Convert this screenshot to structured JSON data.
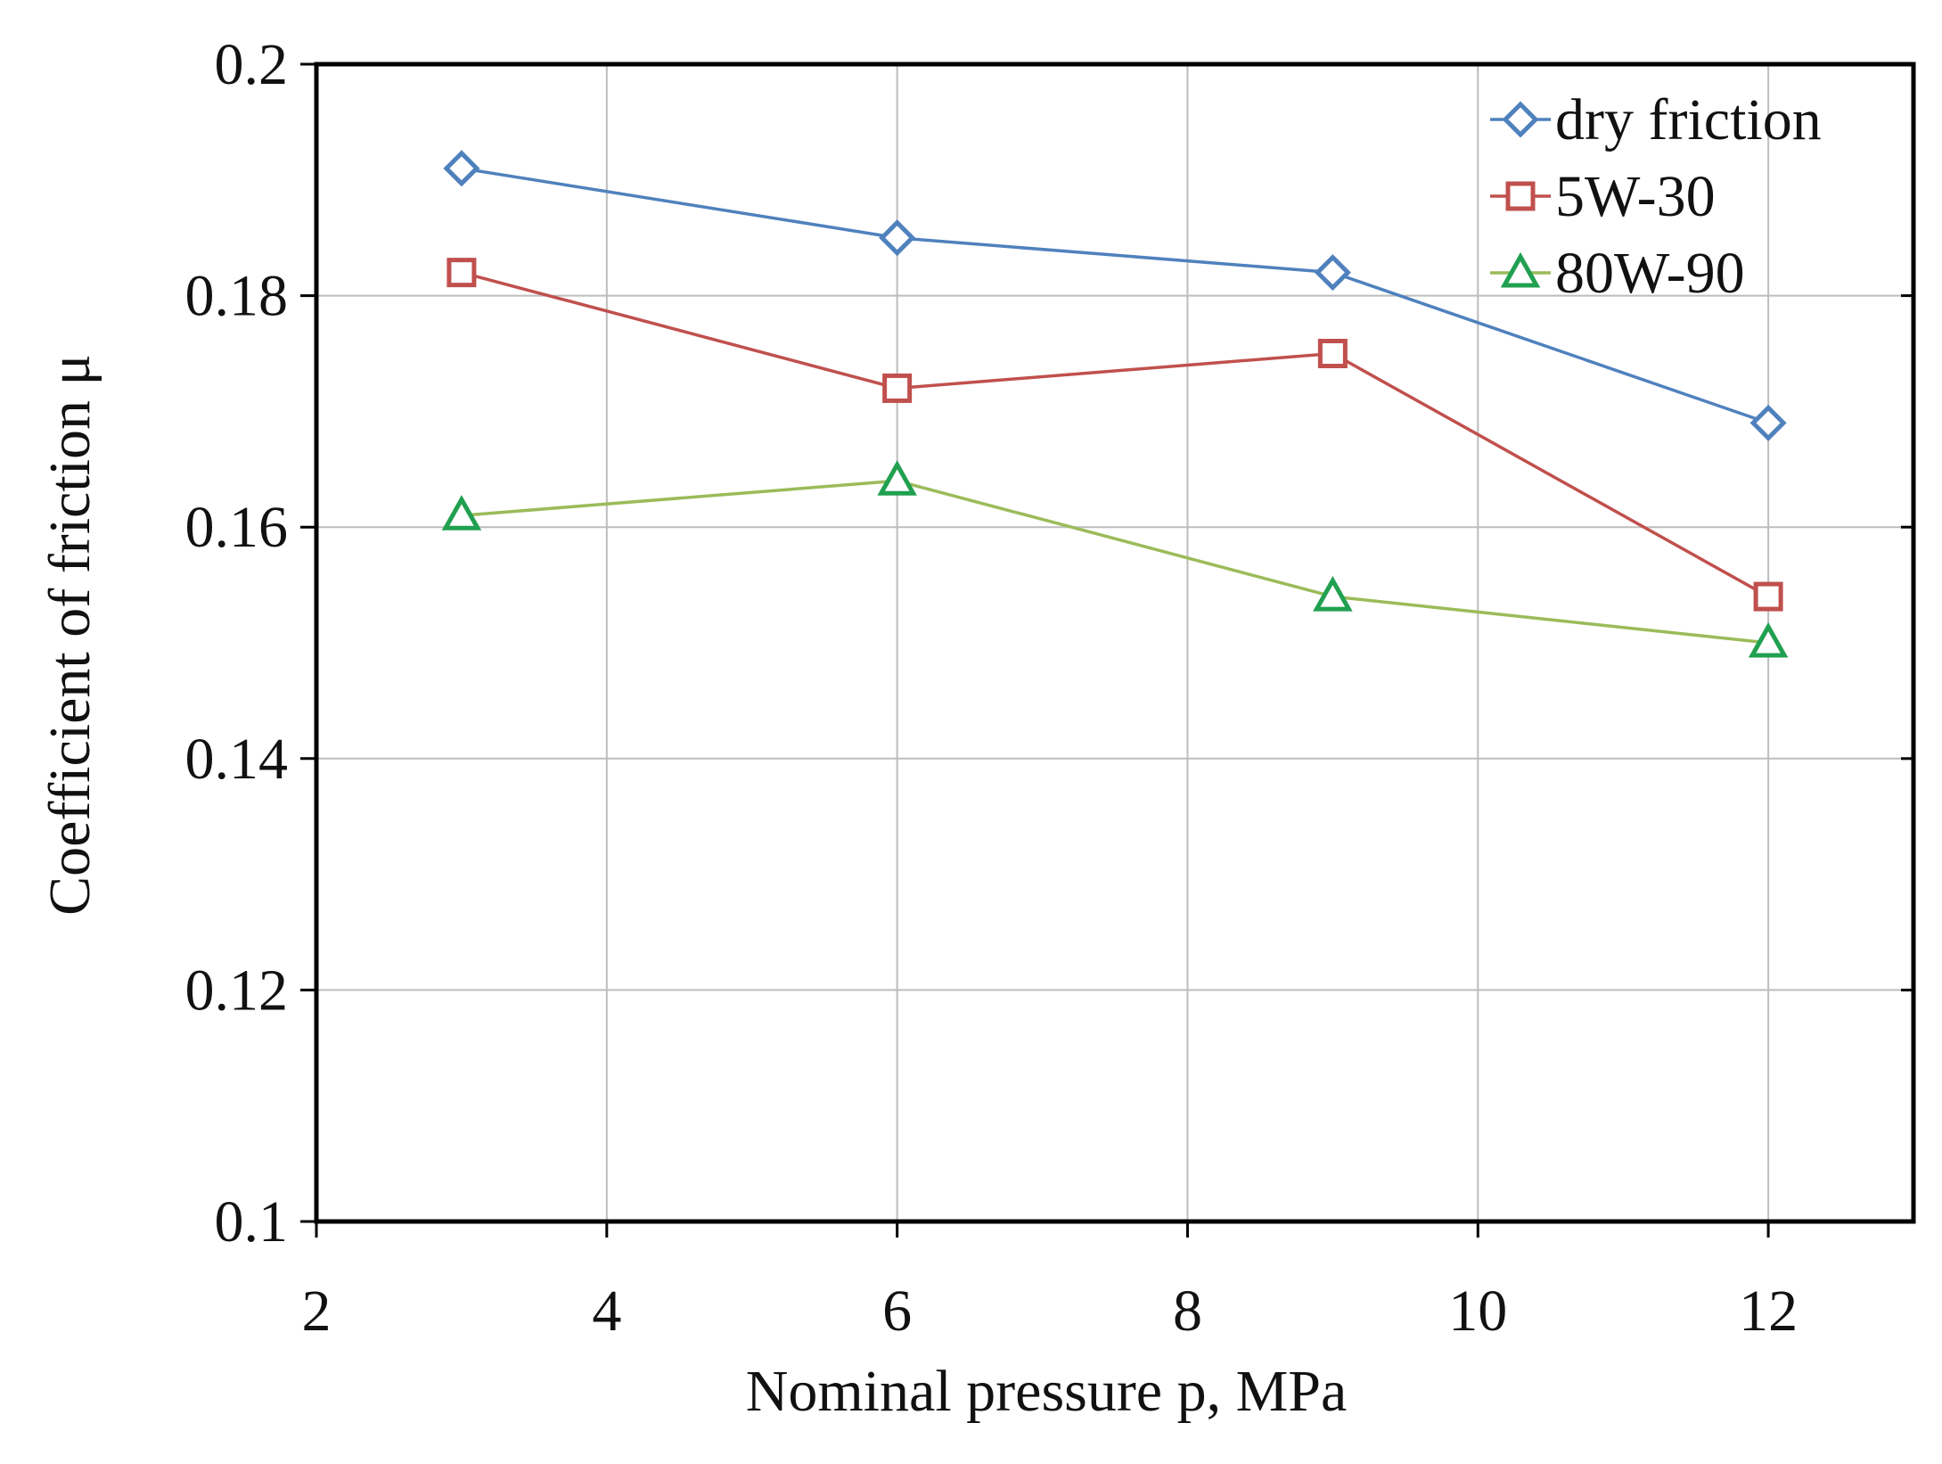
{
  "chart_data": {
    "type": "line",
    "title": "",
    "xlabel": "Nominal pressure p, MPa",
    "ylabel": "Coefficient of friction μ",
    "xlim": [
      2,
      13
    ],
    "ylim": [
      0.1,
      0.2
    ],
    "x_ticks": [
      2,
      4,
      6,
      8,
      10,
      12
    ],
    "x_tick_labels": [
      "2",
      "4",
      "6",
      "8",
      "10",
      "12"
    ],
    "y_ticks": [
      0.1,
      0.12,
      0.14,
      0.16,
      0.18,
      0.2
    ],
    "y_tick_labels": [
      "0.1",
      "0.12",
      "0.14",
      "0.16",
      "0.18",
      "0.2"
    ],
    "grid": true,
    "legend_position": "top-right",
    "x": [
      3,
      6,
      9,
      12
    ],
    "series": [
      {
        "name": "dry friction",
        "marker": "diamond",
        "color": "#4f81bd",
        "marker_color": "#4f81bd",
        "values": [
          0.191,
          0.185,
          0.182,
          0.169
        ]
      },
      {
        "name": "5W-30",
        "marker": "square",
        "color": "#c0504d",
        "marker_color": "#c0504d",
        "values": [
          0.182,
          0.172,
          0.175,
          0.154
        ]
      },
      {
        "name": "80W-90",
        "marker": "triangle",
        "color": "#9bbb59",
        "marker_color": "#20a050",
        "values": [
          0.161,
          0.164,
          0.154,
          0.15
        ]
      }
    ]
  }
}
